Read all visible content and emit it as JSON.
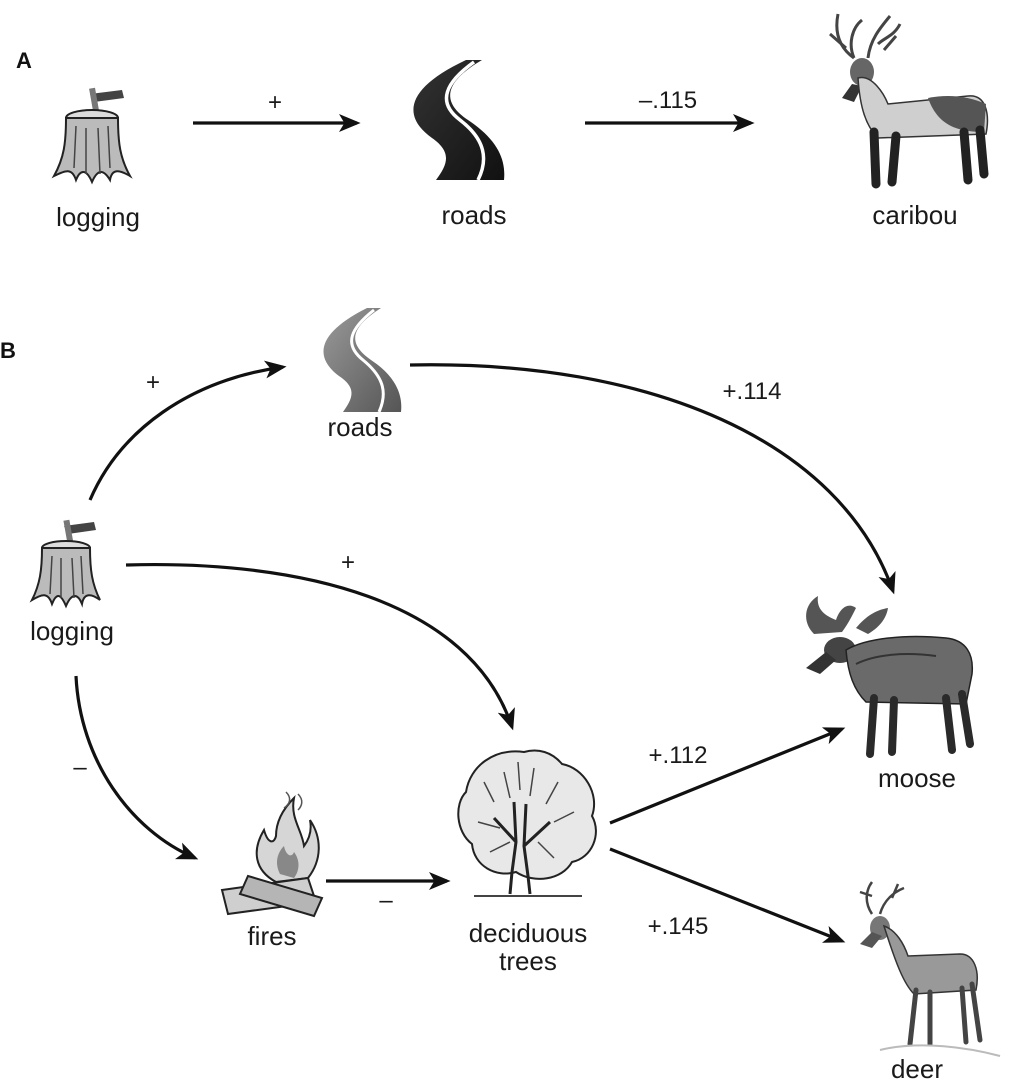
{
  "panel_a": {
    "letter": "A",
    "nodes": {
      "logging": "logging",
      "roads": "roads",
      "caribou": "caribou"
    },
    "edges": {
      "logging_roads": "+",
      "roads_caribou": "–.115"
    }
  },
  "panel_b": {
    "letter": "B",
    "nodes": {
      "logging": "logging",
      "roads": "roads",
      "fires": "fires",
      "deciduous_line1": "deciduous",
      "deciduous_line2": "trees",
      "moose": "moose",
      "deer": "deer"
    },
    "edges": {
      "logging_roads": "+",
      "roads_moose": "+.114",
      "logging_deciduous": "+",
      "logging_fires": "–",
      "fires_deciduous": "–",
      "deciduous_moose": "+.112",
      "deciduous_deer": "+.145"
    }
  },
  "icons": [
    "stump-icon",
    "road-icon",
    "caribou-icon",
    "moose-icon",
    "deer-icon",
    "tree-icon",
    "fire-icon"
  ]
}
